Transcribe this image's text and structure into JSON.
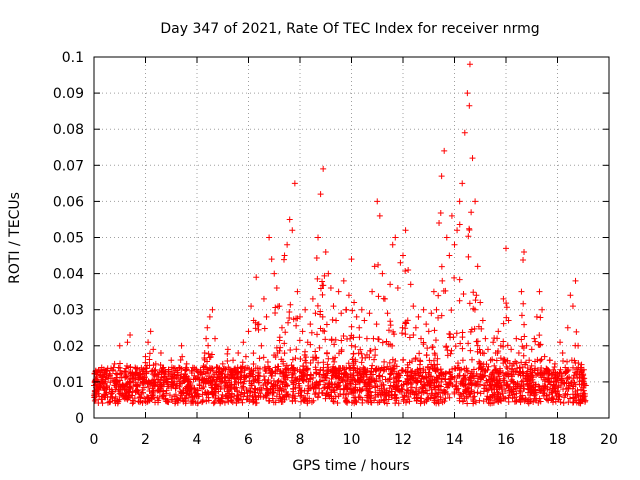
{
  "chart_data": {
    "type": "scatter",
    "title": "Day 347 of 2021, Rate Of TEC Index for receiver nrmg",
    "xlabel": "GPS time / hours",
    "ylabel": "ROTI / TECUs",
    "xlim": [
      0,
      20
    ],
    "ylim": [
      0,
      0.1
    ],
    "xticks": [
      0,
      2,
      4,
      6,
      8,
      10,
      12,
      14,
      16,
      18,
      20
    ],
    "xtick_labels": [
      "0",
      "2",
      "4",
      "6",
      "8",
      "10",
      "12",
      "14",
      "16",
      "18",
      "20"
    ],
    "yticks": [
      0,
      0.01,
      0.02,
      0.03,
      0.04,
      0.05,
      0.06,
      0.07,
      0.08,
      0.09,
      0.1
    ],
    "ytick_labels": [
      "0",
      "0.01",
      "0.02",
      "0.03",
      "0.04",
      "0.05",
      "0.06",
      "0.07",
      "0.08",
      "0.09",
      "0.1"
    ],
    "grid": true,
    "marker": "+",
    "color": "#ff0000",
    "data_x_range": [
      0,
      19.1
    ],
    "series": [
      {
        "name": "ROTI",
        "points": [
          [
            0.0,
            0.009
          ],
          [
            0.1,
            0.012
          ],
          [
            0.2,
            0.006
          ],
          [
            0.3,
            0.014
          ],
          [
            0.4,
            0.01
          ],
          [
            0.5,
            0.013
          ],
          [
            0.6,
            0.008
          ],
          [
            0.7,
            0.011
          ],
          [
            0.8,
            0.015
          ],
          [
            0.9,
            0.012
          ],
          [
            1.0,
            0.02
          ],
          [
            1.1,
            0.009
          ],
          [
            1.2,
            0.013
          ],
          [
            1.3,
            0.021
          ],
          [
            1.4,
            0.023
          ],
          [
            1.5,
            0.011
          ],
          [
            1.6,
            0.014
          ],
          [
            1.7,
            0.009
          ],
          [
            1.8,
            0.012
          ],
          [
            1.9,
            0.01
          ],
          [
            2.0,
            0.017
          ],
          [
            2.1,
            0.021
          ],
          [
            2.2,
            0.024
          ],
          [
            2.3,
            0.019
          ],
          [
            2.4,
            0.015
          ],
          [
            2.5,
            0.012
          ],
          [
            2.6,
            0.018
          ],
          [
            2.7,
            0.014
          ],
          [
            2.8,
            0.011
          ],
          [
            2.9,
            0.013
          ],
          [
            3.0,
            0.016
          ],
          [
            3.1,
            0.012
          ],
          [
            3.2,
            0.009
          ],
          [
            3.3,
            0.014
          ],
          [
            3.4,
            0.02
          ],
          [
            3.5,
            0.011
          ],
          [
            3.6,
            0.015
          ],
          [
            3.7,
            0.01
          ],
          [
            3.8,
            0.013
          ],
          [
            3.9,
            0.008
          ],
          [
            4.0,
            0.011
          ],
          [
            4.1,
            0.009
          ],
          [
            4.2,
            0.012
          ],
          [
            4.3,
            0.018
          ],
          [
            4.4,
            0.025
          ],
          [
            4.5,
            0.028
          ],
          [
            4.6,
            0.03
          ],
          [
            4.7,
            0.022
          ],
          [
            4.8,
            0.014
          ],
          [
            4.9,
            0.012
          ],
          [
            5.0,
            0.015
          ],
          [
            5.1,
            0.011
          ],
          [
            5.2,
            0.019
          ],
          [
            5.3,
            0.013
          ],
          [
            5.4,
            0.016
          ],
          [
            5.5,
            0.01
          ],
          [
            5.6,
            0.018
          ],
          [
            5.7,
            0.014
          ],
          [
            5.8,
            0.021
          ],
          [
            5.9,
            0.017
          ],
          [
            6.0,
            0.024
          ],
          [
            6.1,
            0.031
          ],
          [
            6.2,
            0.027
          ],
          [
            6.3,
            0.039
          ],
          [
            6.4,
            0.026
          ],
          [
            6.5,
            0.02
          ],
          [
            6.6,
            0.033
          ],
          [
            6.7,
            0.028
          ],
          [
            6.8,
            0.05
          ],
          [
            6.9,
            0.044
          ],
          [
            7.0,
            0.04
          ],
          [
            7.1,
            0.036
          ],
          [
            7.2,
            0.031
          ],
          [
            7.3,
            0.025
          ],
          [
            7.4,
            0.045
          ],
          [
            7.5,
            0.048
          ],
          [
            7.6,
            0.055
          ],
          [
            7.7,
            0.052
          ],
          [
            7.8,
            0.065
          ],
          [
            7.9,
            0.035
          ],
          [
            8.0,
            0.028
          ],
          [
            8.1,
            0.024
          ],
          [
            8.2,
            0.03
          ],
          [
            8.3,
            0.021
          ],
          [
            8.4,
            0.026
          ],
          [
            8.5,
            0.033
          ],
          [
            8.6,
            0.029
          ],
          [
            8.7,
            0.05
          ],
          [
            8.8,
            0.062
          ],
          [
            8.9,
            0.069
          ],
          [
            9.0,
            0.046
          ],
          [
            9.1,
            0.04
          ],
          [
            9.2,
            0.036
          ],
          [
            9.3,
            0.031
          ],
          [
            9.4,
            0.027
          ],
          [
            9.5,
            0.035
          ],
          [
            9.6,
            0.029
          ],
          [
            9.7,
            0.038
          ],
          [
            9.8,
            0.03
          ],
          [
            9.9,
            0.034
          ],
          [
            10.0,
            0.044
          ],
          [
            10.1,
            0.032
          ],
          [
            10.2,
            0.028
          ],
          [
            10.3,
            0.025
          ],
          [
            10.4,
            0.03
          ],
          [
            10.5,
            0.027
          ],
          [
            10.6,
            0.022
          ],
          [
            10.7,
            0.029
          ],
          [
            10.8,
            0.035
          ],
          [
            10.9,
            0.042
          ],
          [
            11.0,
            0.06
          ],
          [
            11.1,
            0.056
          ],
          [
            11.2,
            0.04
          ],
          [
            11.3,
            0.033
          ],
          [
            11.4,
            0.029
          ],
          [
            11.5,
            0.037
          ],
          [
            11.6,
            0.048
          ],
          [
            11.7,
            0.05
          ],
          [
            11.8,
            0.036
          ],
          [
            11.9,
            0.043
          ],
          [
            12.0,
            0.045
          ],
          [
            12.1,
            0.052
          ],
          [
            12.2,
            0.041
          ],
          [
            12.3,
            0.037
          ],
          [
            12.4,
            0.031
          ],
          [
            12.5,
            0.025
          ],
          [
            12.6,
            0.028
          ],
          [
            12.7,
            0.022
          ],
          [
            12.8,
            0.03
          ],
          [
            12.9,
            0.026
          ],
          [
            13.0,
            0.024
          ],
          [
            13.1,
            0.029
          ],
          [
            13.2,
            0.035
          ],
          [
            13.3,
            0.03
          ],
          [
            13.4,
            0.054
          ],
          [
            13.5,
            0.067
          ],
          [
            13.6,
            0.074
          ],
          [
            13.7,
            0.05
          ],
          [
            13.8,
            0.045
          ],
          [
            13.9,
            0.056
          ],
          [
            14.0,
            0.048
          ],
          [
            14.1,
            0.052
          ],
          [
            14.2,
            0.06
          ],
          [
            14.3,
            0.065
          ],
          [
            14.4,
            0.079
          ],
          [
            14.5,
            0.09
          ],
          [
            14.6,
            0.098
          ],
          [
            14.7,
            0.072
          ],
          [
            14.8,
            0.06
          ],
          [
            14.9,
            0.042
          ],
          [
            15.0,
            0.032
          ],
          [
            15.1,
            0.027
          ],
          [
            15.2,
            0.022
          ],
          [
            15.3,
            0.019
          ],
          [
            15.4,
            0.016
          ],
          [
            15.5,
            0.021
          ],
          [
            15.6,
            0.018
          ],
          [
            15.7,
            0.024
          ],
          [
            15.8,
            0.02
          ],
          [
            15.9,
            0.033
          ],
          [
            16.0,
            0.047
          ],
          [
            16.1,
            0.027
          ],
          [
            16.2,
            0.019
          ],
          [
            16.3,
            0.015
          ],
          [
            16.4,
            0.022
          ],
          [
            16.5,
            0.018
          ],
          [
            16.6,
            0.035
          ],
          [
            16.7,
            0.046
          ],
          [
            16.8,
            0.02
          ],
          [
            16.9,
            0.016
          ],
          [
            17.0,
            0.019
          ],
          [
            17.1,
            0.022
          ],
          [
            17.2,
            0.028
          ],
          [
            17.3,
            0.035
          ],
          [
            17.4,
            0.03
          ],
          [
            17.5,
            0.017
          ],
          [
            17.6,
            0.013
          ],
          [
            17.7,
            0.016
          ],
          [
            17.8,
            0.012
          ],
          [
            17.9,
            0.015
          ],
          [
            18.0,
            0.011
          ],
          [
            18.1,
            0.021
          ],
          [
            18.2,
            0.018
          ],
          [
            18.3,
            0.014
          ],
          [
            18.4,
            0.025
          ],
          [
            18.5,
            0.034
          ],
          [
            18.6,
            0.031
          ],
          [
            18.7,
            0.038
          ],
          [
            18.8,
            0.02
          ],
          [
            18.9,
            0.014
          ],
          [
            19.0,
            0.011
          ],
          [
            19.1,
            0.009
          ]
        ]
      }
    ]
  }
}
